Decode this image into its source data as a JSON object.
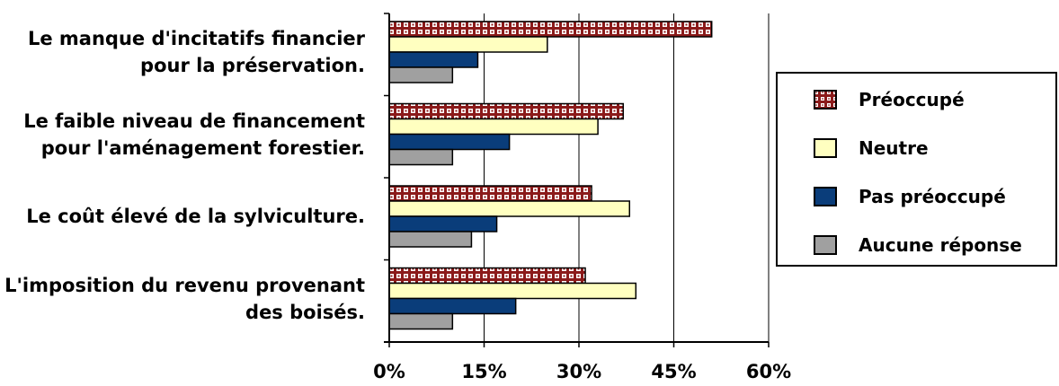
{
  "chart_data": {
    "type": "bar",
    "orientation": "horizontal",
    "categories": [
      [
        "Le manque d'incitatifs financier",
        "pour la préservation."
      ],
      [
        "Le faible niveau de financement",
        "pour l'aménagement forestier."
      ],
      [
        "Le coût élevé de la sylviculture."
      ],
      [
        "L'imposition du revenu provenant",
        "des boisés."
      ]
    ],
    "series": [
      {
        "name": "Préoccupé",
        "values": [
          51,
          37,
          32,
          31
        ],
        "color": "#8b1a1a",
        "pattern": "checker"
      },
      {
        "name": "Neutre",
        "values": [
          25,
          33,
          38,
          39
        ],
        "color": "#ffffc0"
      },
      {
        "name": "Pas préoccupé",
        "values": [
          14,
          19,
          17,
          20
        ],
        "color": "#0a3d7a"
      },
      {
        "name": "Aucune réponse",
        "values": [
          10,
          10,
          13,
          10
        ],
        "color": "#a0a0a0"
      }
    ],
    "xlim": [
      0,
      60
    ],
    "xticks": [
      "0%",
      "15%",
      "30%",
      "45%",
      "60%"
    ],
    "grid": true,
    "legend_position": "right"
  }
}
